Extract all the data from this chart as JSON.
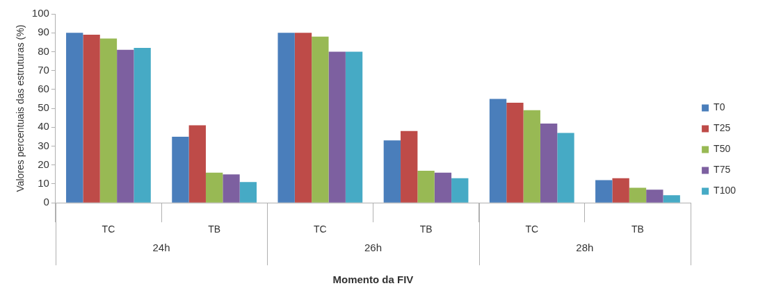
{
  "chart_data": {
    "type": "bar",
    "xlabel": "Momento da FIV",
    "ylabel": "Valores percentuais das estruturas (%)",
    "categories": [
      "TC",
      "TB",
      "TC",
      "TB",
      "TC",
      "TB"
    ],
    "annotations": [
      "24h",
      "26h",
      "28h"
    ],
    "series": [
      {
        "name": "T0",
        "color": "#4a7ebb",
        "values": [
          90,
          35,
          90,
          33,
          55,
          12
        ]
      },
      {
        "name": "T25",
        "color": "#be4b48",
        "values": [
          89,
          41,
          90,
          38,
          53,
          13
        ]
      },
      {
        "name": "T50",
        "color": "#98b954",
        "values": [
          87,
          16,
          88,
          17,
          49,
          8
        ]
      },
      {
        "name": "T75",
        "color": "#7d60a0",
        "values": [
          81,
          15,
          80,
          16,
          42,
          7
        ]
      },
      {
        "name": "T100",
        "color": "#46aac5",
        "values": [
          82,
          11,
          80,
          13,
          37,
          4
        ]
      }
    ],
    "ylim": [
      0,
      100
    ],
    "yticks": [
      0,
      10,
      20,
      30,
      40,
      50,
      60,
      70,
      80,
      90,
      100
    ],
    "grid": false,
    "legend": "right"
  }
}
